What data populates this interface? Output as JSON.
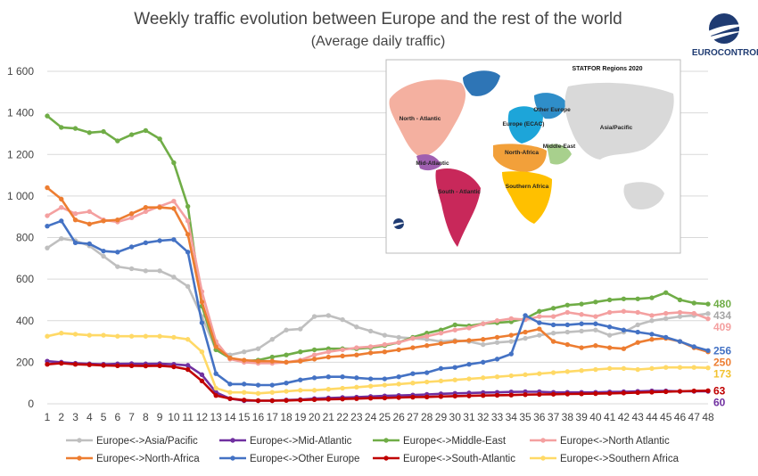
{
  "colors": {
    "asia_pacific": "#BFBFBF",
    "mid_atlantic": "#7030A0",
    "middle_east": "#70AD47",
    "north_atlantic": "#F4A0A0",
    "north_africa": "#ED7D31",
    "other_europe": "#4472C4",
    "south_atlantic": "#C00000",
    "southern_africa": "#FFD966",
    "grid": "#D9D9D9",
    "brand": "#1f3b72"
  },
  "logo": {
    "name": "EUROCONTROL",
    "icon": "eurocontrol-logo-icon"
  },
  "inset_map": {
    "title": "STATFOR Regions 2020",
    "regions": [
      "North - Atlantic",
      "Mid-Atlantic",
      "South - Atlantic",
      "Europe (ECAC)",
      "Other Europe",
      "North-Africa",
      "Middle-East",
      "Southern Africa",
      "Asia/Pacific"
    ]
  },
  "chart_data": {
    "type": "line",
    "title": "Weekly traffic evolution between Europe and the rest of the world",
    "subtitle": "(Average daily traffic)",
    "x": [
      1,
      2,
      3,
      4,
      5,
      6,
      7,
      8,
      9,
      10,
      11,
      12,
      13,
      14,
      15,
      16,
      17,
      18,
      19,
      20,
      21,
      22,
      23,
      24,
      25,
      26,
      27,
      28,
      29,
      30,
      31,
      32,
      33,
      34,
      35,
      36,
      37,
      38,
      39,
      40,
      41,
      42,
      43,
      44,
      45,
      46,
      47,
      48
    ],
    "ylim": [
      0,
      1600
    ],
    "yticks": [
      "0",
      "200",
      "400",
      "600",
      "800",
      "1 000",
      "1 200",
      "1 400",
      "1 600"
    ],
    "ytick_values": [
      0,
      200,
      400,
      600,
      800,
      1000,
      1200,
      1400,
      1600
    ],
    "grid": true,
    "legend_position": "bottom",
    "series": [
      {
        "key": "asia_pacific",
        "name": "Europe<->Asia/Pacific",
        "end_label": "434",
        "values": [
          750,
          795,
          785,
          760,
          710,
          660,
          650,
          640,
          640,
          610,
          565,
          420,
          260,
          235,
          250,
          265,
          310,
          355,
          360,
          420,
          425,
          405,
          370,
          350,
          330,
          320,
          315,
          310,
          300,
          305,
          300,
          285,
          295,
          300,
          315,
          330,
          340,
          345,
          350,
          355,
          330,
          345,
          380,
          400,
          410,
          420,
          425,
          434
        ]
      },
      {
        "key": "mid_atlantic",
        "name": "Europe<->Mid-Atlantic",
        "end_label": "60",
        "values": [
          205,
          200,
          195,
          192,
          190,
          192,
          193,
          192,
          193,
          190,
          185,
          140,
          55,
          25,
          15,
          15,
          15,
          18,
          20,
          25,
          28,
          30,
          32,
          35,
          38,
          40,
          42,
          45,
          48,
          50,
          52,
          54,
          55,
          57,
          58,
          58,
          55,
          55,
          55,
          55,
          57,
          58,
          60,
          62,
          62,
          60,
          60,
          60
        ]
      },
      {
        "key": "middle_east",
        "name": "Europe<->Middle-East",
        "end_label": "480",
        "values": [
          1385,
          1330,
          1325,
          1305,
          1310,
          1265,
          1295,
          1315,
          1275,
          1160,
          950,
          470,
          260,
          220,
          205,
          210,
          225,
          235,
          250,
          260,
          265,
          265,
          265,
          270,
          280,
          295,
          320,
          340,
          355,
          380,
          375,
          385,
          390,
          395,
          410,
          445,
          460,
          475,
          480,
          490,
          500,
          505,
          505,
          510,
          535,
          500,
          485,
          480
        ]
      },
      {
        "key": "north_atlantic",
        "name": "Europe<->North Atlantic",
        "end_label": "409",
        "values": [
          905,
          945,
          915,
          925,
          885,
          875,
          895,
          925,
          950,
          975,
          880,
          540,
          300,
          215,
          200,
          195,
          195,
          200,
          210,
          235,
          250,
          260,
          270,
          275,
          285,
          295,
          315,
          325,
          340,
          355,
          365,
          385,
          400,
          410,
          405,
          420,
          420,
          440,
          430,
          420,
          440,
          445,
          440,
          425,
          435,
          440,
          435,
          409
        ]
      },
      {
        "key": "north_africa",
        "name": "Europe<->North-Africa",
        "end_label": "250",
        "values": [
          1040,
          985,
          885,
          865,
          880,
          885,
          915,
          945,
          945,
          940,
          815,
          490,
          275,
          220,
          210,
          205,
          205,
          200,
          205,
          215,
          225,
          230,
          235,
          245,
          250,
          260,
          270,
          280,
          290,
          300,
          305,
          310,
          320,
          330,
          345,
          360,
          300,
          285,
          270,
          280,
          270,
          265,
          295,
          310,
          315,
          300,
          270,
          250
        ]
      },
      {
        "key": "other_europe",
        "name": "Europe<->Other Europe",
        "end_label": "256",
        "values": [
          855,
          880,
          775,
          770,
          735,
          730,
          755,
          775,
          785,
          790,
          730,
          390,
          145,
          95,
          95,
          90,
          90,
          100,
          115,
          125,
          130,
          130,
          125,
          120,
          120,
          130,
          145,
          150,
          170,
          175,
          190,
          200,
          215,
          240,
          425,
          390,
          380,
          380,
          385,
          385,
          370,
          355,
          345,
          335,
          320,
          300,
          275,
          256
        ]
      },
      {
        "key": "south_atlantic",
        "name": "Europe<->South-Atlantic",
        "end_label": "63",
        "values": [
          190,
          195,
          190,
          188,
          185,
          183,
          183,
          182,
          183,
          178,
          165,
          110,
          40,
          25,
          18,
          15,
          15,
          16,
          18,
          20,
          22,
          23,
          25,
          27,
          28,
          30,
          32,
          33,
          35,
          37,
          38,
          40,
          41,
          42,
          44,
          45,
          46,
          47,
          48,
          49,
          50,
          52,
          54,
          56,
          58,
          60,
          62,
          63
        ]
      },
      {
        "key": "southern_africa",
        "name": "Europe<->Southern Africa",
        "end_label": "173",
        "values": [
          325,
          340,
          335,
          330,
          330,
          325,
          325,
          325,
          325,
          320,
          310,
          250,
          75,
          55,
          55,
          50,
          55,
          60,
          65,
          65,
          70,
          75,
          80,
          85,
          90,
          95,
          100,
          105,
          110,
          115,
          120,
          125,
          130,
          135,
          140,
          145,
          150,
          155,
          160,
          165,
          170,
          170,
          165,
          170,
          175,
          175,
          175,
          173
        ]
      }
    ]
  }
}
